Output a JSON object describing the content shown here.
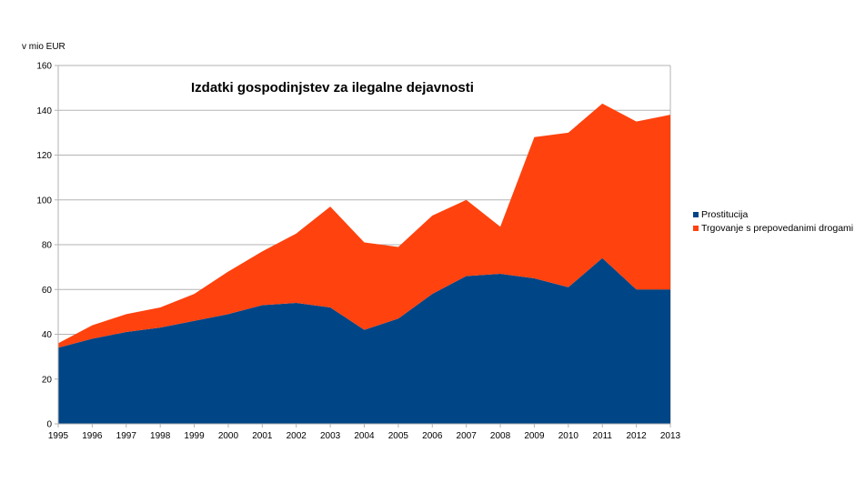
{
  "chart_data": {
    "type": "area",
    "stacked": true,
    "title": "Izdatki gospodinjstev za ilegalne dejavnosti",
    "ylabel": "v mio EUR",
    "xlabel": "",
    "ylim": [
      0,
      160
    ],
    "yticks": [
      0,
      20,
      40,
      60,
      80,
      100,
      120,
      140,
      160
    ],
    "grid": true,
    "legend_position": "right",
    "categories": [
      "1995",
      "1996",
      "1997",
      "1998",
      "1999",
      "2000",
      "2001",
      "2002",
      "2003",
      "2004",
      "2005",
      "2006",
      "2007",
      "2008",
      "2009",
      "2010",
      "2011",
      "2012",
      "2013"
    ],
    "series": [
      {
        "name": "Prostitucija",
        "color": "#004586",
        "values": [
          34,
          38,
          41,
          43,
          46,
          49,
          53,
          54,
          52,
          42,
          47,
          58,
          66,
          67,
          65,
          61,
          74,
          60,
          60
        ]
      },
      {
        "name": "Trgovanje s prepovedanimi drogami",
        "color": "#ff420e",
        "values": [
          2,
          6,
          8,
          9,
          12,
          19,
          24,
          31,
          45,
          39,
          32,
          35,
          34,
          21,
          63,
          69,
          69,
          75,
          78
        ]
      }
    ]
  }
}
